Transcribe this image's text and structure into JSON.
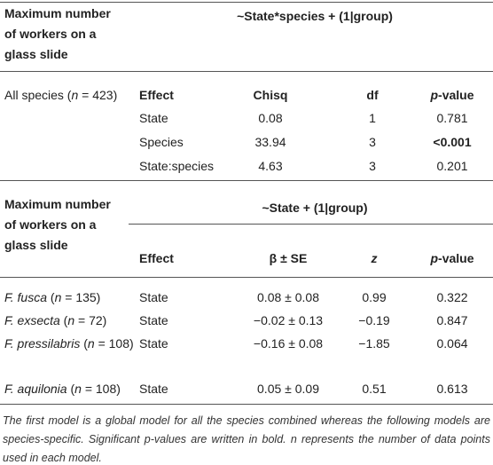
{
  "table1": {
    "header_label": "Maximum number of workers on a glass slide",
    "model": "~State*species + (1|group)",
    "group": [
      {
        "text": "All species ("
      },
      {
        "text": "n",
        "italic": true
      },
      {
        "text": " = 423)"
      }
    ],
    "columns": [
      "Effect",
      "Chisq",
      "df",
      [
        {
          "text": "p",
          "italic": true
        },
        {
          "text": "-value"
        }
      ]
    ],
    "rows": [
      [
        "State",
        "0.08",
        "1",
        "0.781"
      ],
      [
        "Species",
        "33.94",
        "3",
        [
          {
            "text": "<0.001",
            "bold": true
          }
        ]
      ],
      [
        "State:species",
        "4.63",
        "3",
        "0.201"
      ]
    ]
  },
  "table2": {
    "header_label": "Maximum number of workers on a glass slide",
    "model": "~State + (1|group)",
    "columns": [
      "Effect",
      "β ± SE",
      [
        {
          "text": "z",
          "italic": true
        }
      ],
      [
        {
          "text": "p",
          "italic": true
        },
        {
          "text": "-value"
        }
      ]
    ],
    "rows": [
      {
        "group": [
          {
            "text": "F. fusca",
            "italic": true
          },
          {
            "text": " ("
          },
          {
            "text": "n",
            "italic": true
          },
          {
            "text": " = 135)"
          }
        ],
        "cells": [
          "State",
          "0.08 ± 0.08",
          "0.99",
          "0.322"
        ]
      },
      {
        "group": [
          {
            "text": "F. exsecta",
            "italic": true
          },
          {
            "text": " ("
          },
          {
            "text": "n",
            "italic": true
          },
          {
            "text": " = 72)"
          }
        ],
        "cells": [
          "State",
          "−0.02 ± 0.13",
          "−0.19",
          "0.847"
        ]
      },
      {
        "group": [
          {
            "text": "F. pressilabris",
            "italic": true
          },
          {
            "text": " ("
          },
          {
            "text": "n",
            "italic": true
          },
          {
            "text": " = 108)"
          }
        ],
        "cells": [
          "State",
          "−0.16 ± 0.08",
          "−1.85",
          "0.064"
        ]
      },
      {
        "group": [
          {
            "text": "F. aquilonia",
            "italic": true
          },
          {
            "text": " ("
          },
          {
            "text": "n",
            "italic": true
          },
          {
            "text": " = 108)"
          }
        ],
        "cells": [
          "State",
          "0.05 ± 0.09",
          "0.51",
          "0.613"
        ]
      }
    ]
  },
  "footnote": "The first model is a global model for all the species combined whereas the following models are species-specific. Significant p-values are written in bold. n represents the number of data points used in each model."
}
